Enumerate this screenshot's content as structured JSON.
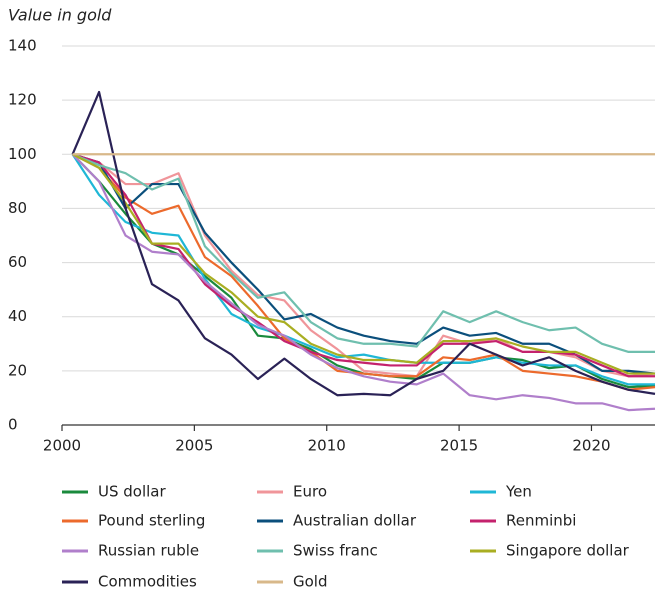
{
  "chart_data": {
    "type": "line",
    "y_label": "Value in gold",
    "x": [
      2000.4,
      2001.4,
      2002.4,
      2003.4,
      2004.4,
      2005.4,
      2006.4,
      2007.4,
      2008.4,
      2009.4,
      2010.4,
      2011.4,
      2012.4,
      2013.4,
      2014.4,
      2015.4,
      2016.4,
      2017.4,
      2018.4,
      2019.4,
      2020.4,
      2021.4,
      2022.4
    ],
    "xlim": [
      2000,
      2022.4
    ],
    "xticks": [
      2000,
      2005,
      2010,
      2015,
      2020
    ],
    "ylim": [
      0,
      140
    ],
    "yticks": [
      0,
      20,
      40,
      60,
      80,
      100,
      120,
      140
    ],
    "grid": true,
    "series": [
      {
        "name": "US dollar",
        "color": "#1a8a3c",
        "values": [
          100,
          90,
          78,
          67,
          63,
          55,
          47,
          33,
          32,
          28,
          22,
          19,
          18,
          17,
          23,
          23,
          25,
          24,
          21,
          22,
          17,
          14,
          14.5
        ]
      },
      {
        "name": "Euro",
        "color": "#f0959a",
        "values": [
          100,
          97,
          89,
          89,
          93,
          70,
          57,
          48,
          46,
          35,
          28,
          20,
          19,
          18,
          33,
          30,
          32,
          27,
          27,
          25,
          20,
          18,
          19
        ]
      },
      {
        "name": "Yen",
        "color": "#1fb7d6",
        "values": [
          100,
          85,
          75,
          71,
          70,
          54,
          41,
          36,
          33,
          29,
          25,
          26,
          24,
          23,
          23,
          23,
          25,
          23,
          22,
          22,
          18,
          15,
          15
        ]
      },
      {
        "name": "Pound sterling",
        "color": "#ec6a2c",
        "values": [
          100,
          95,
          84,
          78,
          81,
          62,
          55,
          44,
          32,
          27,
          20,
          19,
          18,
          18,
          25,
          24,
          26,
          20,
          19,
          18,
          16,
          13,
          14
        ]
      },
      {
        "name": "Australian dollar",
        "color": "#0b4f7c",
        "values": [
          100,
          97,
          80,
          89,
          89,
          71,
          60,
          50,
          39,
          41,
          36,
          33,
          31,
          30,
          36,
          33,
          34,
          30,
          30,
          26,
          20,
          20,
          19
        ]
      },
      {
        "name": "Renminbi",
        "color": "#c4226d",
        "values": [
          100,
          97,
          85,
          67,
          65,
          52,
          44,
          38,
          31,
          27,
          24,
          23,
          22,
          22,
          30,
          30,
          31,
          27,
          27,
          26,
          22,
          18,
          18
        ]
      },
      {
        "name": "Russian ruble",
        "color": "#b07fcb",
        "values": [
          100,
          90,
          70,
          64,
          63,
          53,
          45,
          37,
          33,
          26,
          21,
          18,
          16,
          15,
          19,
          11,
          9.5,
          11,
          10,
          8,
          8,
          5.5,
          6
        ]
      },
      {
        "name": "Swiss franc",
        "color": "#6fbfae",
        "values": [
          100,
          96,
          93,
          87,
          91,
          66,
          56,
          47,
          49,
          38,
          32,
          30,
          30,
          29,
          42,
          38,
          42,
          38,
          35,
          36,
          30,
          27,
          27
        ]
      },
      {
        "name": "Singapore dollar",
        "color": "#a9ae22",
        "values": [
          100,
          95,
          82,
          67,
          67,
          56,
          49,
          40,
          38,
          30,
          26,
          24,
          24,
          23,
          31,
          31,
          32,
          29,
          27,
          27,
          23,
          19,
          19
        ]
      },
      {
        "name": "Commodities",
        "color": "#2a2256",
        "values": [
          100,
          123,
          80,
          52,
          46,
          32,
          26,
          17,
          24.5,
          17,
          11,
          11.5,
          11,
          17,
          20,
          30,
          26,
          22,
          25,
          20,
          16,
          13,
          11.5
        ]
      },
      {
        "name": "Gold",
        "color": "#d8b88a",
        "values": [
          100,
          100,
          100,
          100,
          100,
          100,
          100,
          100,
          100,
          100,
          100,
          100,
          100,
          100,
          100,
          100,
          100,
          100,
          100,
          100,
          100,
          100,
          100
        ]
      }
    ]
  }
}
